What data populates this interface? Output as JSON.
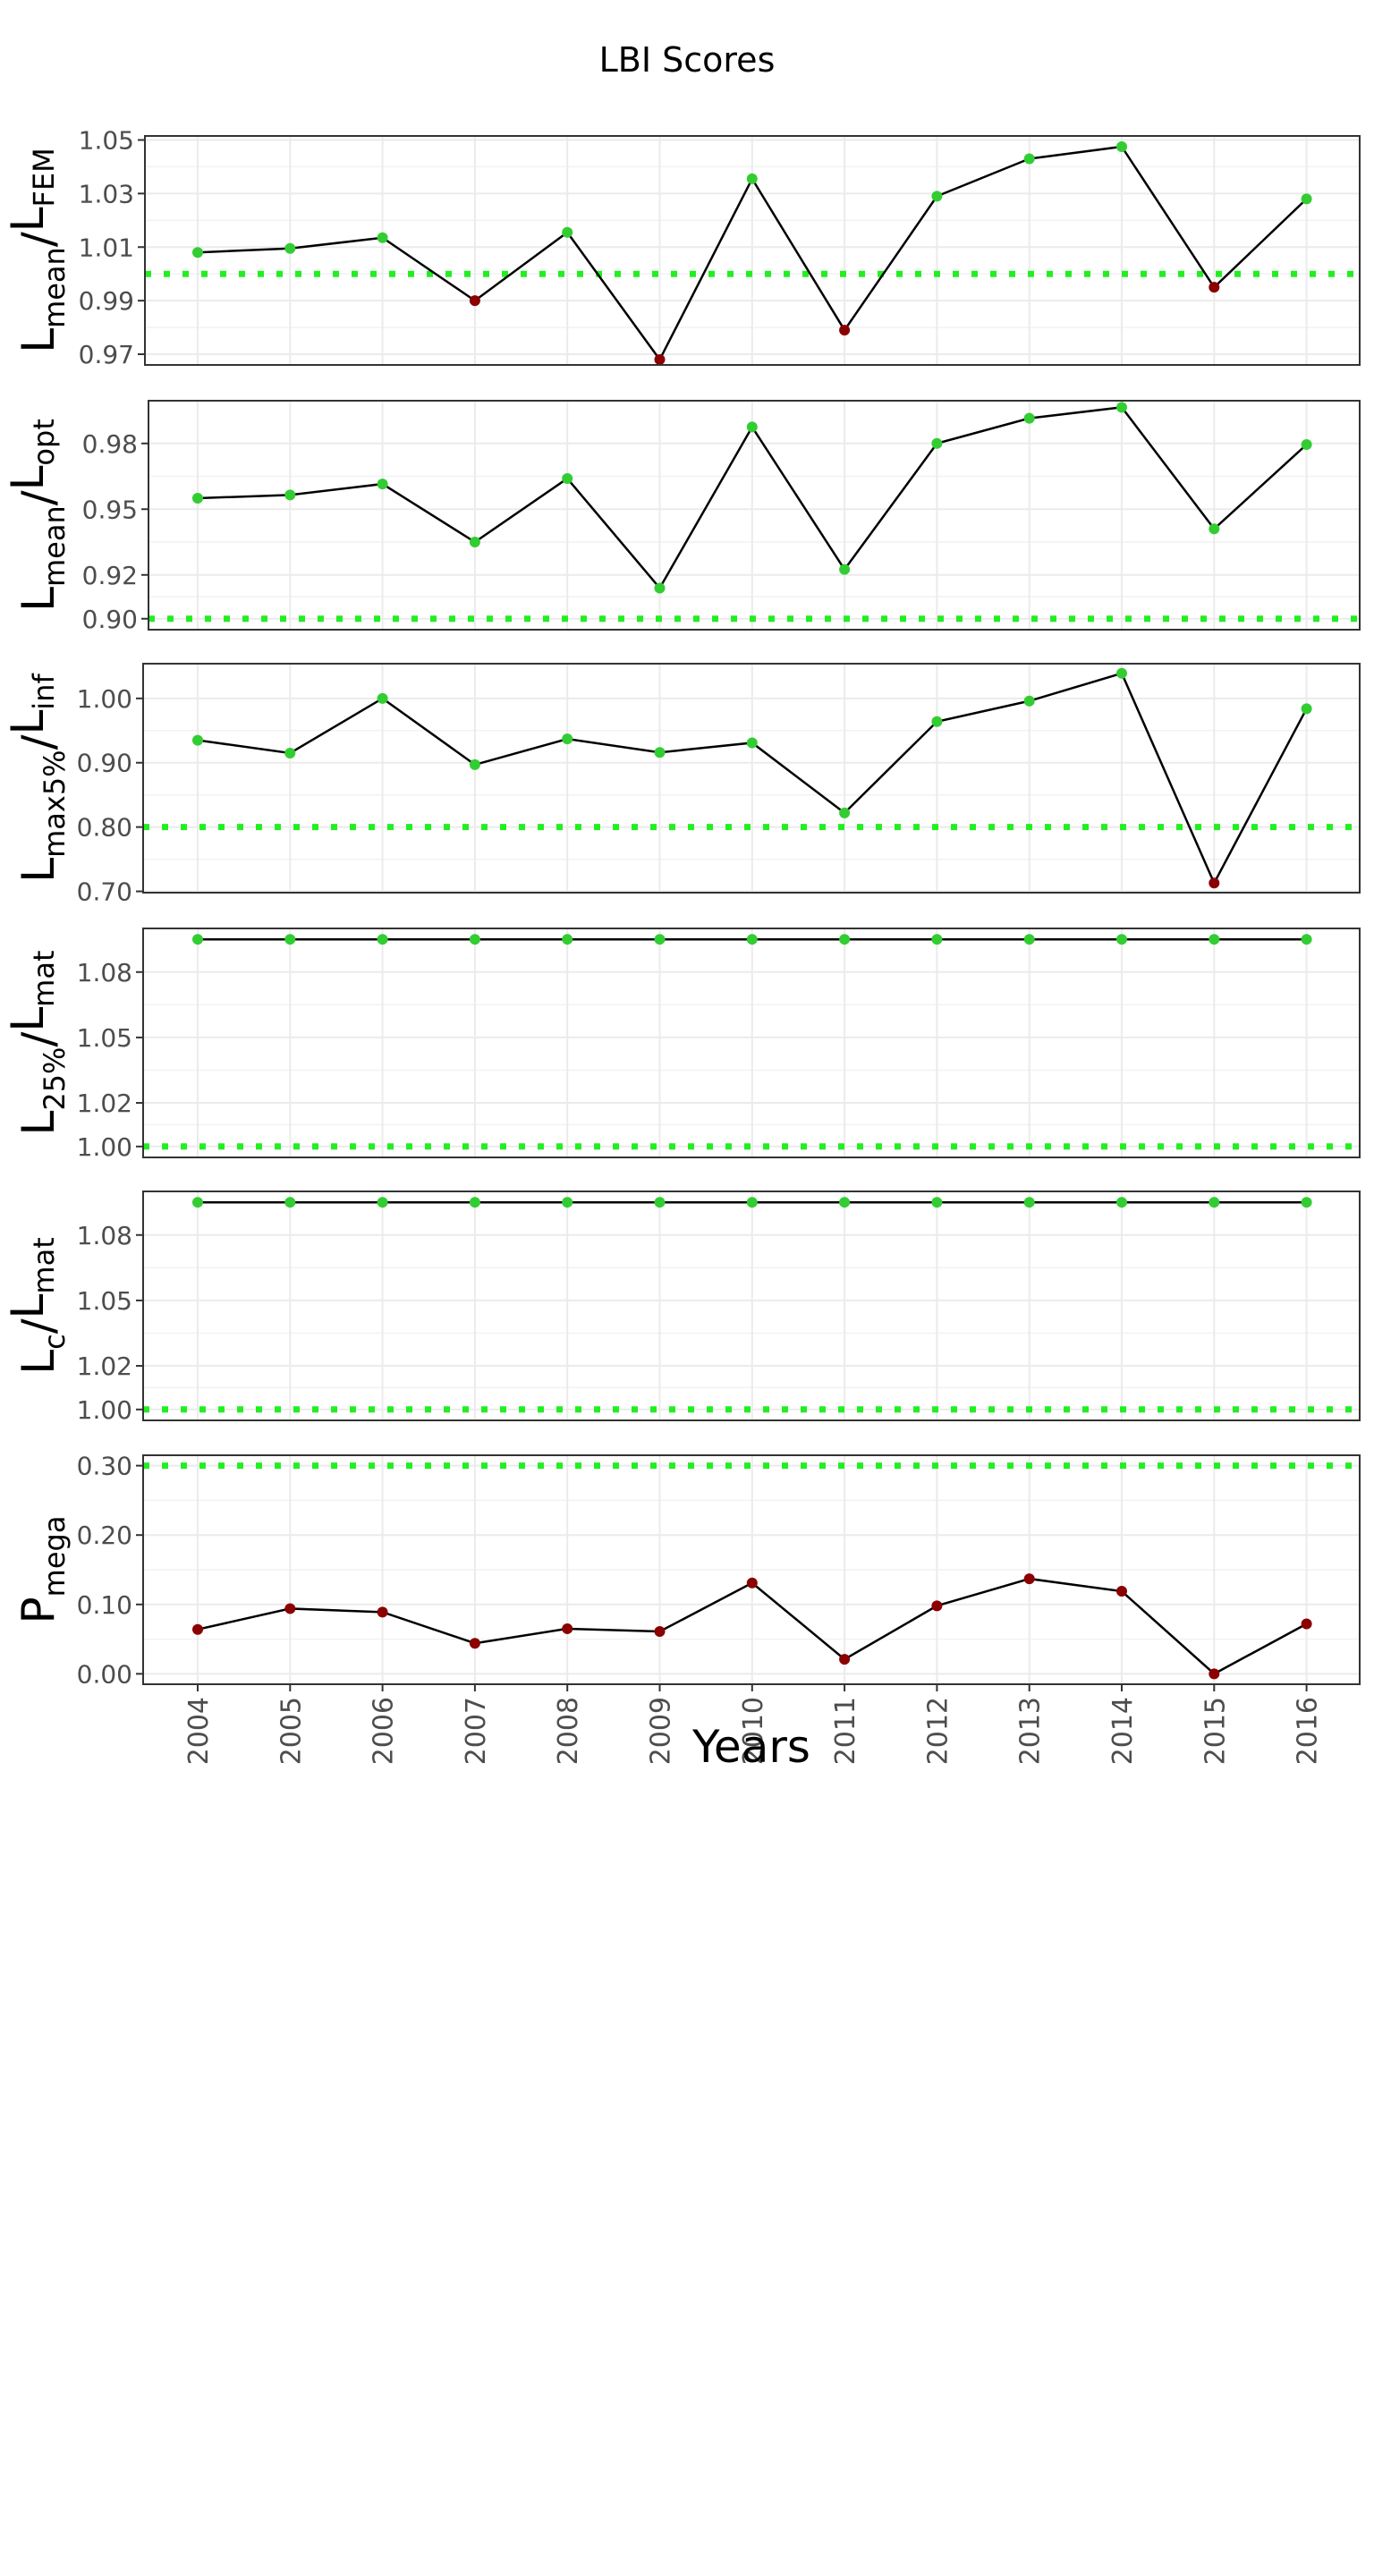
{
  "title": "LBI Scores",
  "xlabel": "Years",
  "colors": {
    "pass": "#32cd32",
    "fail": "#8b0000",
    "reference": "#22ee22",
    "line": "#000000"
  },
  "chart_data": [
    {
      "type": "line",
      "ylabel": {
        "main": "L",
        "sub": "mean",
        "main2": "L",
        "sub2": "FEM"
      },
      "x": [
        2004,
        2005,
        2006,
        2007,
        2008,
        2009,
        2010,
        2011,
        2012,
        2013,
        2014,
        2015,
        2016
      ],
      "values": [
        1.008,
        1.0095,
        1.0135,
        0.99,
        1.0155,
        0.968,
        1.0355,
        0.979,
        1.029,
        1.043,
        1.0475,
        0.995,
        1.028
      ],
      "status": [
        "pass",
        "pass",
        "pass",
        "fail",
        "pass",
        "fail",
        "pass",
        "fail",
        "pass",
        "pass",
        "pass",
        "fail",
        "pass"
      ],
      "reference": 1.0,
      "ylim": [
        0.966,
        1.0515
      ],
      "yticks": [
        0.97,
        0.99,
        1.01,
        1.03,
        1.05
      ],
      "yticklabels": [
        "0.97",
        "0.99",
        "1.01",
        "1.03",
        "1.05"
      ],
      "grid": true
    },
    {
      "type": "line",
      "ylabel": {
        "main": "L",
        "sub": "mean",
        "main2": "L",
        "sub2": "opt"
      },
      "x": [
        2004,
        2005,
        2006,
        2007,
        2008,
        2009,
        2010,
        2011,
        2012,
        2013,
        2014,
        2015,
        2016
      ],
      "values": [
        0.955,
        0.9565,
        0.9615,
        0.935,
        0.964,
        0.914,
        0.9875,
        0.9225,
        0.98,
        0.9915,
        0.9965,
        0.941,
        0.9795
      ],
      "status": [
        "pass",
        "pass",
        "pass",
        "pass",
        "pass",
        "pass",
        "pass",
        "pass",
        "pass",
        "pass",
        "pass",
        "pass",
        "pass"
      ],
      "reference": 0.9,
      "ylim": [
        0.895,
        0.9995
      ],
      "yticks": [
        0.9,
        0.92,
        0.95,
        0.98
      ],
      "yticklabels": [
        "0.90",
        "0.92",
        "0.95",
        "0.98"
      ],
      "grid": true
    },
    {
      "type": "line",
      "ylabel": {
        "main": "L",
        "sub": "max5%",
        "main2": "L",
        "sub2": "inf"
      },
      "x": [
        2004,
        2005,
        2006,
        2007,
        2008,
        2009,
        2010,
        2011,
        2012,
        2013,
        2014,
        2015,
        2016
      ],
      "values": [
        0.935,
        0.915,
        1.0,
        0.897,
        0.937,
        0.916,
        0.931,
        0.822,
        0.964,
        0.996,
        1.039,
        0.713,
        0.984
      ],
      "status": [
        "pass",
        "pass",
        "pass",
        "pass",
        "pass",
        "pass",
        "pass",
        "pass",
        "pass",
        "pass",
        "pass",
        "fail",
        "pass"
      ],
      "reference": 0.8,
      "ylim": [
        0.698,
        1.054
      ],
      "yticks": [
        0.7,
        0.8,
        0.9,
        1.0
      ],
      "yticklabels": [
        "0.70",
        "0.80",
        "0.90",
        "1.00"
      ],
      "grid": true
    },
    {
      "type": "line",
      "ylabel": {
        "main": "L",
        "sub": "25%",
        "main2": "L",
        "sub2": "mat"
      },
      "x": [
        2004,
        2005,
        2006,
        2007,
        2008,
        2009,
        2010,
        2011,
        2012,
        2013,
        2014,
        2015,
        2016
      ],
      "values": [
        1.095,
        1.095,
        1.095,
        1.095,
        1.095,
        1.095,
        1.095,
        1.095,
        1.095,
        1.095,
        1.095,
        1.095,
        1.095
      ],
      "status": [
        "pass",
        "pass",
        "pass",
        "pass",
        "pass",
        "pass",
        "pass",
        "pass",
        "pass",
        "pass",
        "pass",
        "pass",
        "pass"
      ],
      "reference": 1.0,
      "ylim": [
        0.995,
        1.1
      ],
      "yticks": [
        1.0,
        1.02,
        1.05,
        1.08
      ],
      "yticklabels": [
        "1.00",
        "1.02",
        "1.05",
        "1.08"
      ],
      "grid": true
    },
    {
      "type": "line",
      "ylabel": {
        "main": "L",
        "sub": "c",
        "main2": "L",
        "sub2": "mat"
      },
      "x": [
        2004,
        2005,
        2006,
        2007,
        2008,
        2009,
        2010,
        2011,
        2012,
        2013,
        2014,
        2015,
        2016
      ],
      "values": [
        1.095,
        1.095,
        1.095,
        1.095,
        1.095,
        1.095,
        1.095,
        1.095,
        1.095,
        1.095,
        1.095,
        1.095,
        1.095
      ],
      "status": [
        "pass",
        "pass",
        "pass",
        "pass",
        "pass",
        "pass",
        "pass",
        "pass",
        "pass",
        "pass",
        "pass",
        "pass",
        "pass"
      ],
      "reference": 1.0,
      "ylim": [
        0.995,
        1.1
      ],
      "yticks": [
        1.0,
        1.02,
        1.05,
        1.08
      ],
      "yticklabels": [
        "1.00",
        "1.02",
        "1.05",
        "1.08"
      ],
      "grid": true
    },
    {
      "type": "line",
      "ylabel": {
        "main": "P",
        "sub": "mega",
        "main2": "",
        "sub2": ""
      },
      "x": [
        2004,
        2005,
        2006,
        2007,
        2008,
        2009,
        2010,
        2011,
        2012,
        2013,
        2014,
        2015,
        2016
      ],
      "values": [
        0.064,
        0.094,
        0.089,
        0.044,
        0.065,
        0.061,
        0.131,
        0.021,
        0.098,
        0.137,
        0.119,
        0.0,
        0.072
      ],
      "status": [
        "fail",
        "fail",
        "fail",
        "fail",
        "fail",
        "fail",
        "fail",
        "fail",
        "fail",
        "fail",
        "fail",
        "fail",
        "fail"
      ],
      "reference": 0.3,
      "ylim": [
        -0.015,
        0.315
      ],
      "yticks": [
        0.0,
        0.1,
        0.2,
        0.3
      ],
      "yticklabels": [
        "0.00",
        "0.10",
        "0.20",
        "0.30"
      ],
      "grid": true
    }
  ]
}
